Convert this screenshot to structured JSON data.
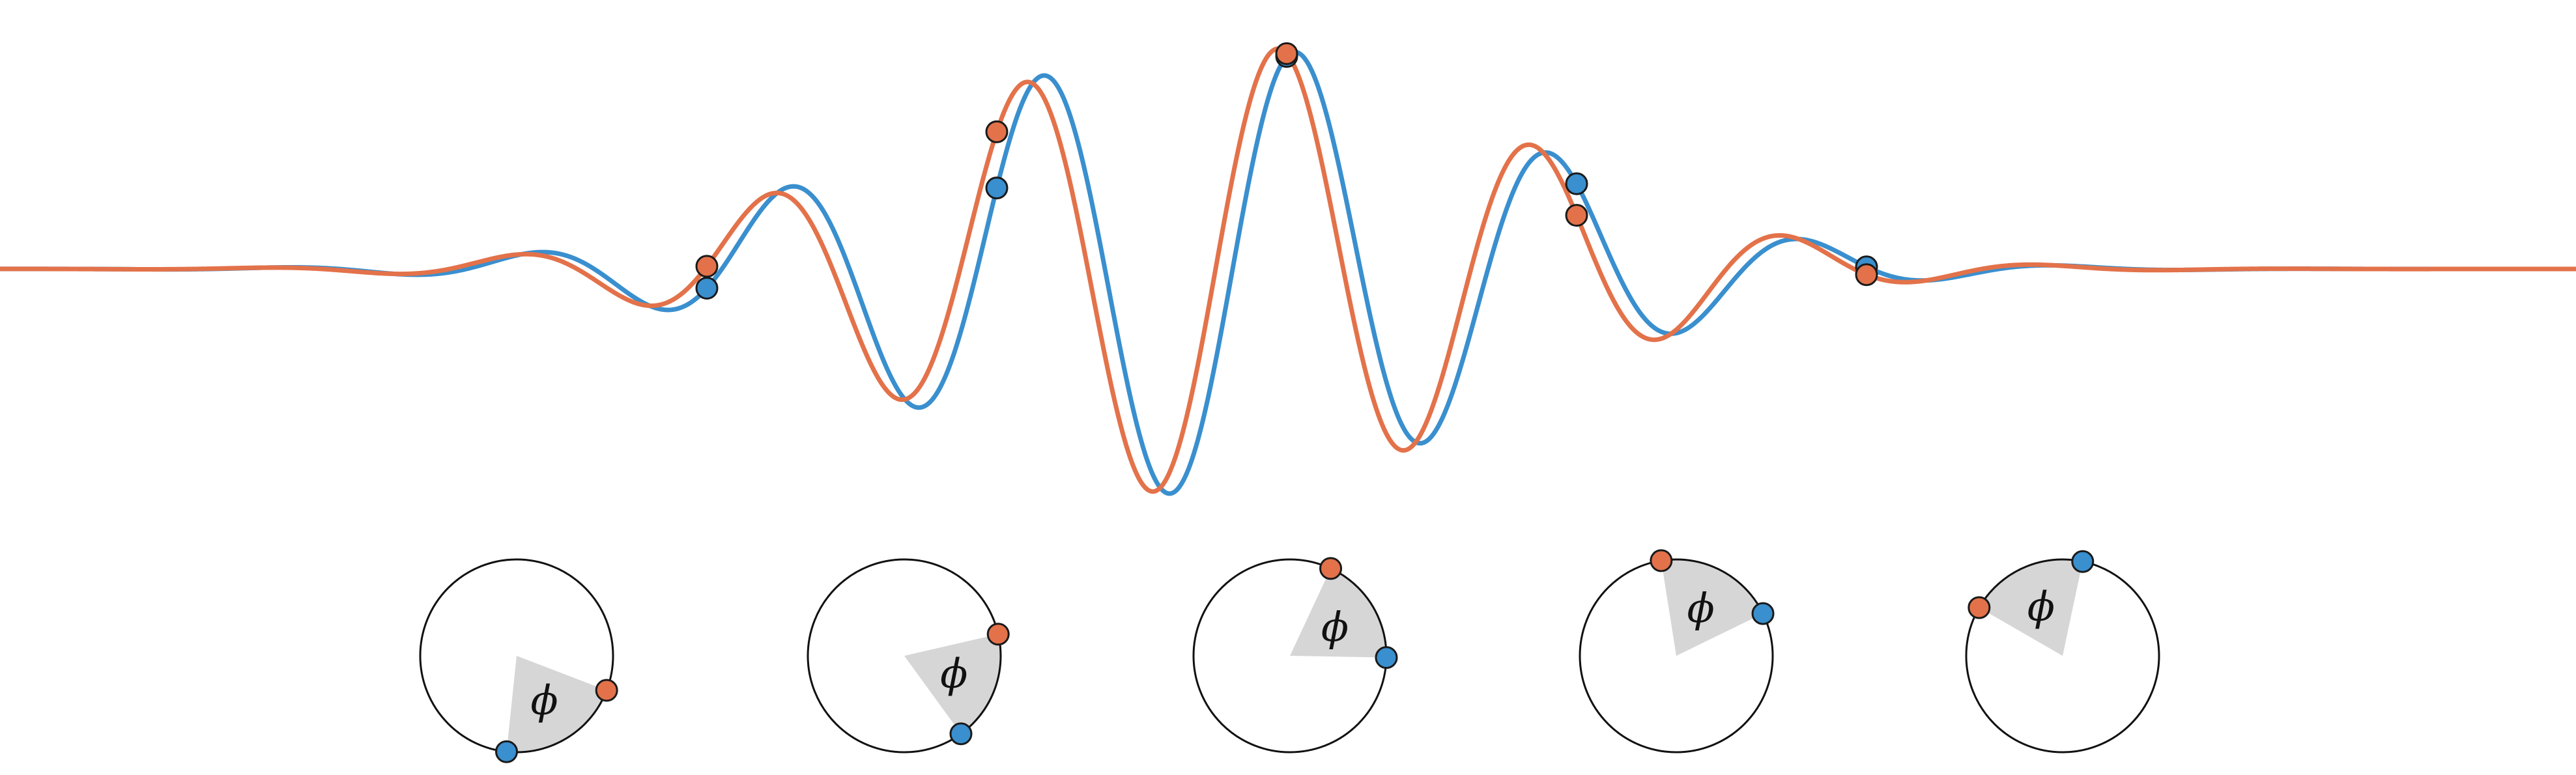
{
  "colors": {
    "blue": "#3a8fce",
    "orange": "#e3724a",
    "wedge": "#d6d6d6",
    "circle": "#111111",
    "marker_edge": "#1a1a1a"
  },
  "phase_symbol": "ϕ",
  "phase_offset_fraction": 0.0667,
  "phasors": [
    {
      "label": "ϕ"
    },
    {
      "label": "ϕ"
    },
    {
      "label": "ϕ"
    },
    {
      "label": "ϕ"
    },
    {
      "label": "ϕ"
    }
  ]
}
